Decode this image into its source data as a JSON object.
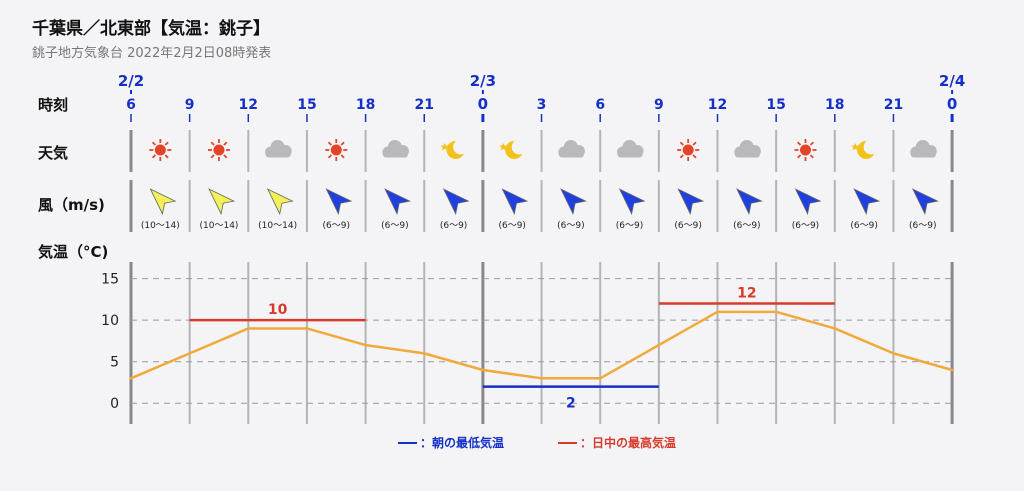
{
  "header": {
    "title": "千葉県／北東部【気温：銚子】",
    "subtitle": "銚子地方気象台 2022年2月2日08時発表"
  },
  "rows": {
    "time_label": "時刻",
    "weather_label": "天気",
    "wind_label": "風（m/s)",
    "temp_label": "気温（°C)"
  },
  "dates": [
    {
      "label": "2/2",
      "slot": 0
    },
    {
      "label": "2/3",
      "slot": 6
    },
    {
      "label": "2/4",
      "slot": 14
    }
  ],
  "hours": [
    "6",
    "9",
    "12",
    "15",
    "18",
    "21",
    "0",
    "3",
    "6",
    "9",
    "12",
    "15",
    "18",
    "21",
    "0"
  ],
  "weather": [
    "sun",
    "sun",
    "cloud",
    "sun",
    "cloud",
    "moon",
    "moon",
    "cloud",
    "cloud",
    "sun",
    "cloud",
    "sun",
    "moon",
    "cloud"
  ],
  "wind": [
    {
      "speed": "(10〜14)",
      "color": "#f3f05a",
      "dir": "north-west"
    },
    {
      "speed": "(10〜14)",
      "color": "#f3f05a",
      "dir": "north-west"
    },
    {
      "speed": "(10〜14)",
      "color": "#f3f05a",
      "dir": "north-west"
    },
    {
      "speed": "(6〜9)",
      "color": "#1f3fe0",
      "dir": "north-west"
    },
    {
      "speed": "(6〜9)",
      "color": "#1f3fe0",
      "dir": "north-west"
    },
    {
      "speed": "(6〜9)",
      "color": "#1f3fe0",
      "dir": "north-west"
    },
    {
      "speed": "(6〜9)",
      "color": "#1f3fe0",
      "dir": "north-west"
    },
    {
      "speed": "(6〜9)",
      "color": "#1f3fe0",
      "dir": "north-west"
    },
    {
      "speed": "(6〜9)",
      "color": "#1f3fe0",
      "dir": "north-west"
    },
    {
      "speed": "(6〜9)",
      "color": "#1f3fe0",
      "dir": "north-west"
    },
    {
      "speed": "(6〜9)",
      "color": "#1f3fe0",
      "dir": "north-west"
    },
    {
      "speed": "(6〜9)",
      "color": "#1f3fe0",
      "dir": "north-west"
    },
    {
      "speed": "(6〜9)",
      "color": "#1f3fe0",
      "dir": "north-west"
    },
    {
      "speed": "(6〜9)",
      "color": "#1f3fe0",
      "dir": "north-west"
    }
  ],
  "legend": {
    "min_label": "：朝の最低気温",
    "max_label": "：日中の最高気温"
  },
  "colors": {
    "temp_line": "#f2a93b",
    "max": "#d93a2b",
    "min": "#1530c8"
  },
  "chart_data": {
    "type": "line",
    "x": [
      "2/2 6",
      "2/2 9",
      "2/2 12",
      "2/2 15",
      "2/2 18",
      "2/2 21",
      "2/3 0",
      "2/3 3",
      "2/3 6",
      "2/3 9",
      "2/3 12",
      "2/3 15",
      "2/3 18",
      "2/3 21",
      "2/4 0"
    ],
    "series": [
      {
        "values": [
          3,
          6,
          9,
          9,
          7,
          6,
          4,
          3,
          3,
          7,
          11,
          11,
          9,
          6,
          4
        ]
      }
    ],
    "yticks": [
      0,
      5,
      10,
      15
    ],
    "ylim": [
      -2.5,
      17
    ],
    "daytime_max": [
      {
        "label": "10",
        "value": 10,
        "from": "2/2 9",
        "to": "2/2 18"
      },
      {
        "label": "12",
        "value": 12,
        "from": "2/3 9",
        "to": "2/3 18"
      }
    ],
    "morning_min": [
      {
        "label": "2",
        "value": 2,
        "from": "2/3 0",
        "to": "2/3 9"
      }
    ],
    "grid": true
  }
}
